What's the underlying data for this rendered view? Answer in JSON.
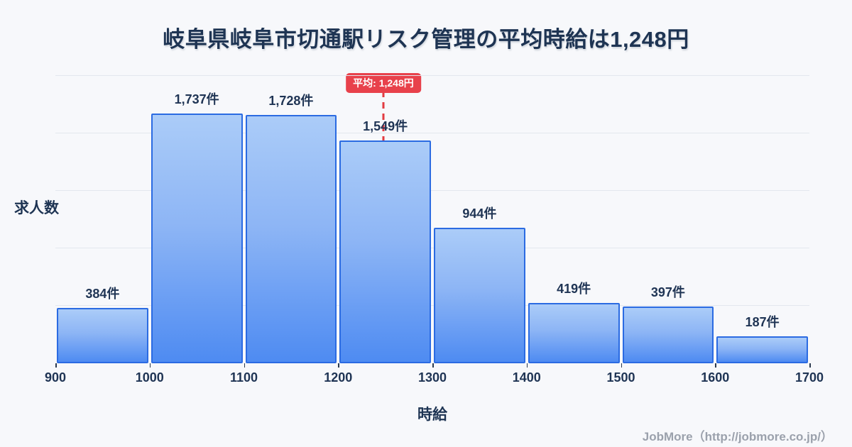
{
  "title": "岐阜県岐阜市切通駅リスク管理の平均時給は1,248円",
  "footer": {
    "credit": "JobMore（http://jobmore.co.jp/）"
  },
  "colors": {
    "background": "#f7f8fb",
    "bar_fill_top": "#abccf8",
    "bar_fill_bottom": "#4e8bf2",
    "bar_border": "#2b6be2",
    "grid": "#e3e7ee",
    "text": "#1e3453",
    "average_red": "#e8414b",
    "footer_gray": "#9ba1ac"
  },
  "chart_data": {
    "type": "bar",
    "title": "岐阜県岐阜市切通駅リスク管理の平均時給は1,248円",
    "xlabel": "時給",
    "ylabel": "求人数",
    "bin_edges": [
      900,
      1000,
      1100,
      1200,
      1300,
      1400,
      1500,
      1600,
      1700
    ],
    "values": [
      384,
      1737,
      1728,
      1549,
      944,
      419,
      397,
      187
    ],
    "value_labels": [
      "384件",
      "1,737件",
      "1,728件",
      "1,549件",
      "944件",
      "419件",
      "397件",
      "187件"
    ],
    "x_tick_labels": [
      "900",
      "1000",
      "1100",
      "1200",
      "1300",
      "1400",
      "1500",
      "1600",
      "1700"
    ],
    "ylim": [
      0,
      2000
    ],
    "grid_interval": 400,
    "grid": true,
    "legend": false,
    "average": {
      "value": 1248,
      "label": "平均: 1,248円"
    }
  }
}
